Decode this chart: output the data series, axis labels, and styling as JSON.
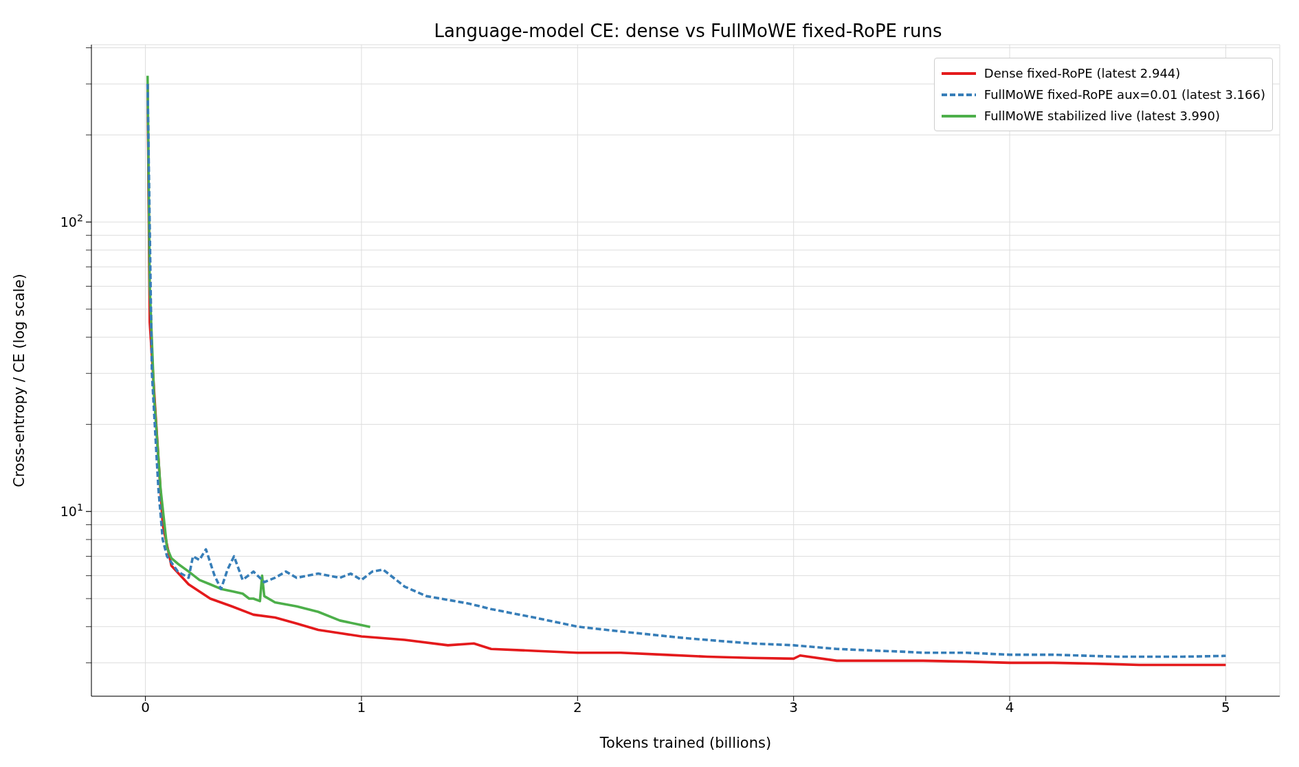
{
  "chart_data": {
    "type": "line",
    "title": "Language-model CE: dense vs FullMoWE fixed-RoPE runs",
    "xlabel": "Tokens trained (billions)",
    "ylabel": "Cross-entropy / CE (log scale)",
    "log": "y",
    "grid": true,
    "legend": "top right",
    "xlim": [
      -0.25,
      5.25
    ],
    "xticks": [
      0,
      1,
      2,
      3,
      4,
      5
    ],
    "ylim": [
      2.3,
      410
    ],
    "yticks": [
      {
        "value": 3,
        "label": null
      },
      {
        "value": 4,
        "label": null
      },
      {
        "value": 5,
        "label": null
      },
      {
        "value": 6,
        "label": null
      },
      {
        "value": 7,
        "label": null
      },
      {
        "value": 8,
        "label": null
      },
      {
        "value": 9,
        "label": null
      },
      {
        "value": 10,
        "label": "10$^{1}$"
      },
      {
        "value": 20,
        "label": null
      },
      {
        "value": 30,
        "label": null
      },
      {
        "value": 40,
        "label": null
      },
      {
        "value": 50,
        "label": null
      },
      {
        "value": 60,
        "label": null
      },
      {
        "value": 70,
        "label": null
      },
      {
        "value": 80,
        "label": null
      },
      {
        "value": 90,
        "label": null
      },
      {
        "value": 100,
        "label": "10$^{2}$"
      },
      {
        "value": 200,
        "label": null
      },
      {
        "value": 300,
        "label": null
      },
      {
        "value": 400,
        "label": null
      }
    ],
    "series": [
      {
        "name": "Dense fixed-RoPE (latest 2.944)",
        "color": "#e41a1c",
        "line_style": "solid",
        "x": [
          0.01,
          0.02,
          0.05,
          0.08,
          0.12,
          0.2,
          0.3,
          0.4,
          0.5,
          0.6,
          0.7,
          0.8,
          0.9,
          1.0,
          1.2,
          1.4,
          1.52,
          1.6,
          1.8,
          2.0,
          2.2,
          2.4,
          2.6,
          2.8,
          3.0,
          3.03,
          3.2,
          3.4,
          3.6,
          3.8,
          4.0,
          4.2,
          4.4,
          4.6,
          4.8,
          5.0
        ],
        "values": [
          300,
          45,
          20,
          9,
          6.5,
          5.6,
          5.0,
          4.7,
          4.4,
          4.3,
          4.1,
          3.9,
          3.8,
          3.7,
          3.6,
          3.45,
          3.5,
          3.35,
          3.3,
          3.25,
          3.25,
          3.2,
          3.15,
          3.12,
          3.1,
          3.18,
          3.05,
          3.05,
          3.05,
          3.03,
          3.0,
          3.0,
          2.98,
          2.95,
          2.95,
          2.95
        ]
      },
      {
        "name": "FullMoWE fixed-RoPE aux=0.01 (latest 3.166)",
        "color": "#377eb8",
        "line_style": "dashed",
        "x": [
          0.01,
          0.03,
          0.06,
          0.08,
          0.1,
          0.15,
          0.2,
          0.22,
          0.25,
          0.28,
          0.32,
          0.35,
          0.38,
          0.41,
          0.45,
          0.5,
          0.55,
          0.6,
          0.65,
          0.7,
          0.8,
          0.9,
          0.95,
          1.0,
          1.05,
          1.1,
          1.2,
          1.3,
          1.4,
          1.5,
          1.6,
          1.8,
          2.0,
          2.2,
          2.5,
          2.8,
          3.0,
          3.2,
          3.4,
          3.5,
          3.6,
          3.8,
          4.0,
          4.2,
          4.5,
          4.8,
          5.0
        ],
        "values": [
          300,
          30,
          12,
          8,
          7,
          6.2,
          5.9,
          7.0,
          6.8,
          7.4,
          6.0,
          5.4,
          6.3,
          7.0,
          5.8,
          6.2,
          5.7,
          5.9,
          6.2,
          5.9,
          6.1,
          5.9,
          6.1,
          5.8,
          6.2,
          6.3,
          5.5,
          5.1,
          4.95,
          4.8,
          4.6,
          4.3,
          4.0,
          3.85,
          3.65,
          3.5,
          3.45,
          3.35,
          3.3,
          3.28,
          3.25,
          3.25,
          3.2,
          3.2,
          3.15,
          3.15,
          3.17
        ]
      },
      {
        "name": "FullMoWE stabilized live (latest 3.990)",
        "color": "#4daf4a",
        "line_style": "solid",
        "x": [
          0.01,
          0.02,
          0.04,
          0.07,
          0.1,
          0.12,
          0.15,
          0.2,
          0.25,
          0.3,
          0.35,
          0.4,
          0.45,
          0.48,
          0.5,
          0.53,
          0.54,
          0.55,
          0.6,
          0.7,
          0.8,
          0.9,
          1.0,
          1.04
        ],
        "values": [
          320,
          60,
          25,
          12,
          7.5,
          6.9,
          6.6,
          6.2,
          5.8,
          5.6,
          5.4,
          5.3,
          5.2,
          5.0,
          5.0,
          4.9,
          6.0,
          5.1,
          4.85,
          4.7,
          4.5,
          4.2,
          4.05,
          3.99
        ]
      }
    ]
  }
}
